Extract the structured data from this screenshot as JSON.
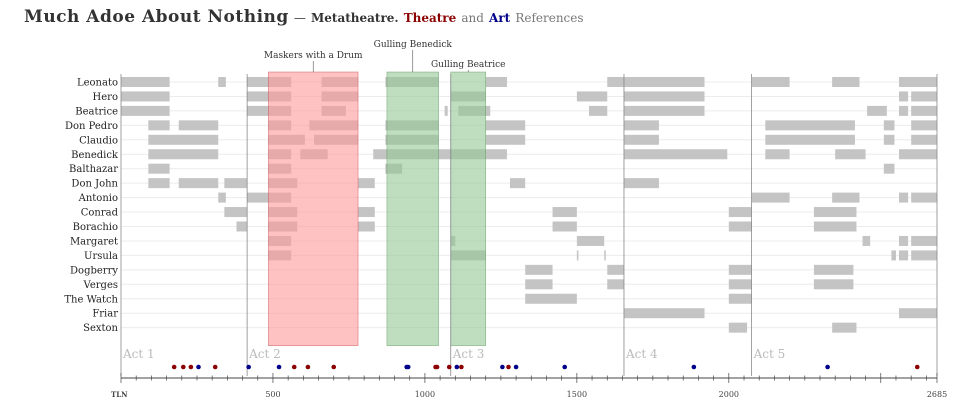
{
  "title": {
    "main": "Much Adoe About Nothing",
    "dash": "—",
    "metatheatre": "Metatheatre.",
    "theatre": "Theatre",
    "and": "and",
    "art": "Art",
    "references": "References"
  },
  "colors": {
    "bar": "#c4c4c4",
    "masking": "#ff9999",
    "gulling": "#94c794",
    "theatre_ref": "#8b0000",
    "art_ref": "#00008b",
    "act_line": "#888888"
  },
  "chart_data": {
    "type": "timeline",
    "xlabel": "TLN",
    "xlim": [
      0,
      2685
    ],
    "x_ticks": [
      0,
      500,
      1000,
      1500,
      2000,
      2685
    ],
    "x_tick_labels": [
      "",
      "500",
      "1000",
      "1500",
      "2000",
      "2685"
    ],
    "characters": [
      "Leonato",
      "Hero",
      "Beatrice",
      "Don Pedro",
      "Claudio",
      "Benedick",
      "Balthazar",
      "Don John",
      "Antonio",
      "Conrad",
      "Borachio",
      "Margaret",
      "Ursula",
      "Dogberry",
      "Verges",
      "The Watch",
      "Friar",
      "Sexton"
    ],
    "acts": [
      {
        "label": "Act 1",
        "start": 0
      },
      {
        "label": "Act 2",
        "start": 415
      },
      {
        "label": "Act 3",
        "start": 1085
      },
      {
        "label": "Act 4",
        "start": 1655
      },
      {
        "label": "Act 5",
        "start": 2075
      }
    ],
    "end_tln": 2685,
    "highlights": [
      {
        "label": "Maskers with a Drum",
        "start": 485,
        "end": 780,
        "kind": "masking"
      },
      {
        "label": "Gulling Benedick",
        "start": 875,
        "end": 1045,
        "kind": "gulling"
      },
      {
        "label": "Gulling Beatrice",
        "start": 1085,
        "end": 1200,
        "kind": "gulling"
      }
    ],
    "presence": [
      [
        [
          0,
          160
        ],
        [
          320,
          345
        ],
        [
          415,
          560
        ],
        [
          660,
          780
        ],
        [
          870,
          1045
        ],
        [
          1200,
          1270
        ],
        [
          1600,
          1655
        ],
        [
          1655,
          1920
        ],
        [
          2075,
          2200
        ],
        [
          2340,
          2430
        ],
        [
          2560,
          2685
        ]
      ],
      [
        [
          0,
          160
        ],
        [
          415,
          560
        ],
        [
          660,
          780
        ],
        [
          1085,
          1200
        ],
        [
          1500,
          1600
        ],
        [
          1655,
          1920
        ],
        [
          2560,
          2590
        ],
        [
          2600,
          2685
        ]
      ],
      [
        [
          0,
          160
        ],
        [
          415,
          560
        ],
        [
          660,
          740
        ],
        [
          1065,
          1075
        ],
        [
          1110,
          1215
        ],
        [
          1540,
          1600
        ],
        [
          1655,
          1920
        ],
        [
          2455,
          2520
        ],
        [
          2560,
          2590
        ],
        [
          2600,
          2685
        ]
      ],
      [
        [
          90,
          160
        ],
        [
          190,
          320
        ],
        [
          485,
          560
        ],
        [
          620,
          780
        ],
        [
          870,
          1045
        ],
        [
          1200,
          1330
        ],
        [
          1655,
          1770
        ],
        [
          2120,
          2415
        ],
        [
          2510,
          2545
        ],
        [
          2600,
          2685
        ]
      ],
      [
        [
          90,
          320
        ],
        [
          485,
          605
        ],
        [
          635,
          780
        ],
        [
          870,
          1045
        ],
        [
          1200,
          1330
        ],
        [
          1655,
          1770
        ],
        [
          2120,
          2415
        ],
        [
          2510,
          2545
        ],
        [
          2600,
          2685
        ]
      ],
      [
        [
          90,
          320
        ],
        [
          485,
          560
        ],
        [
          590,
          680
        ],
        [
          830,
          1085
        ],
        [
          1085,
          1200
        ],
        [
          1200,
          1270
        ],
        [
          1655,
          1995
        ],
        [
          2120,
          2200
        ],
        [
          2350,
          2450
        ],
        [
          2560,
          2685
        ]
      ],
      [
        [
          90,
          160
        ],
        [
          485,
          560
        ],
        [
          870,
          925
        ],
        [
          2510,
          2545
        ]
      ],
      [
        [
          90,
          160
        ],
        [
          190,
          320
        ],
        [
          340,
          415
        ],
        [
          485,
          580
        ],
        [
          780,
          835
        ],
        [
          1280,
          1330
        ],
        [
          1655,
          1770
        ]
      ],
      [
        [
          320,
          345
        ],
        [
          415,
          560
        ],
        [
          2075,
          2200
        ],
        [
          2340,
          2430
        ],
        [
          2560,
          2590
        ],
        [
          2600,
          2685
        ]
      ],
      [
        [
          340,
          415
        ],
        [
          485,
          580
        ],
        [
          780,
          835
        ],
        [
          1420,
          1500
        ],
        [
          2000,
          2075
        ],
        [
          2280,
          2420
        ]
      ],
      [
        [
          380,
          415
        ],
        [
          485,
          580
        ],
        [
          780,
          835
        ],
        [
          1420,
          1500
        ],
        [
          2000,
          2075
        ],
        [
          2280,
          2420
        ]
      ],
      [
        [
          485,
          560
        ],
        [
          1085,
          1100
        ],
        [
          1500,
          1590
        ],
        [
          2440,
          2465
        ],
        [
          2560,
          2590
        ],
        [
          2600,
          2685
        ]
      ],
      [
        [
          485,
          560
        ],
        [
          1085,
          1200
        ],
        [
          1500,
          1505
        ],
        [
          1590,
          1595
        ],
        [
          2535,
          2550
        ],
        [
          2560,
          2590
        ],
        [
          2600,
          2685
        ]
      ],
      [
        [
          1330,
          1420
        ],
        [
          1600,
          1655
        ],
        [
          2000,
          2075
        ],
        [
          2280,
          2410
        ]
      ],
      [
        [
          1330,
          1420
        ],
        [
          1600,
          1655
        ],
        [
          2000,
          2075
        ],
        [
          2280,
          2410
        ]
      ],
      [
        [
          1330,
          1500
        ],
        [
          2000,
          2075
        ]
      ],
      [
        [
          1655,
          1920
        ],
        [
          2560,
          2685
        ]
      ],
      [
        [
          2000,
          2060
        ],
        [
          2340,
          2420
        ]
      ]
    ],
    "references": [
      {
        "tln": 175,
        "kind": "theatre"
      },
      {
        "tln": 205,
        "kind": "theatre"
      },
      {
        "tln": 230,
        "kind": "theatre"
      },
      {
        "tln": 255,
        "kind": "art"
      },
      {
        "tln": 310,
        "kind": "theatre"
      },
      {
        "tln": 420,
        "kind": "art"
      },
      {
        "tln": 520,
        "kind": "art"
      },
      {
        "tln": 570,
        "kind": "theatre"
      },
      {
        "tln": 615,
        "kind": "theatre"
      },
      {
        "tln": 700,
        "kind": "theatre"
      },
      {
        "tln": 940,
        "kind": "art"
      },
      {
        "tln": 945,
        "kind": "art"
      },
      {
        "tln": 1035,
        "kind": "theatre"
      },
      {
        "tln": 1040,
        "kind": "theatre"
      },
      {
        "tln": 1080,
        "kind": "theatre"
      },
      {
        "tln": 1105,
        "kind": "art"
      },
      {
        "tln": 1120,
        "kind": "theatre"
      },
      {
        "tln": 1255,
        "kind": "art"
      },
      {
        "tln": 1275,
        "kind": "theatre"
      },
      {
        "tln": 1300,
        "kind": "art"
      },
      {
        "tln": 1460,
        "kind": "art"
      },
      {
        "tln": 1885,
        "kind": "art"
      },
      {
        "tln": 2325,
        "kind": "art"
      },
      {
        "tln": 2620,
        "kind": "theatre"
      }
    ]
  }
}
